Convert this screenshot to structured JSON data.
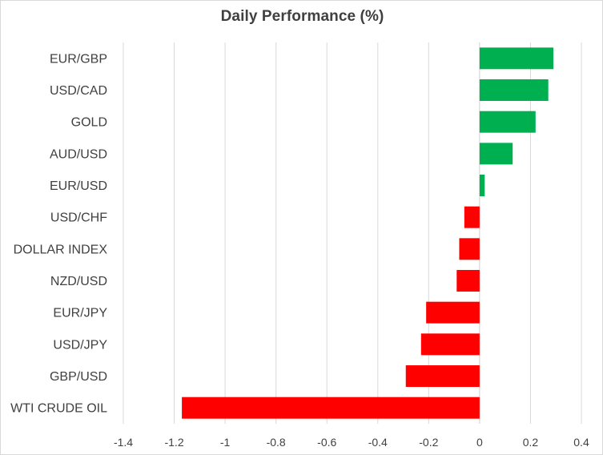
{
  "chart_data": {
    "type": "bar",
    "orientation": "horizontal",
    "title": "Daily Performance (%)",
    "xlabel": "",
    "ylabel": "",
    "categories": [
      "EUR/GBP",
      "USD/CAD",
      "GOLD",
      "AUD/USD",
      "EUR/USD",
      "USD/CHF",
      "DOLLAR INDEX",
      "NZD/USD",
      "EUR/JPY",
      "USD/JPY",
      "GBP/USD",
      "WTI CRUDE OIL"
    ],
    "values": [
      0.29,
      0.27,
      0.22,
      0.13,
      0.02,
      -0.06,
      -0.08,
      -0.09,
      -0.21,
      -0.23,
      -0.29,
      -1.17
    ],
    "xlim": [
      -1.4,
      0.4
    ],
    "x_ticks": [
      -1.4,
      -1.2,
      -1,
      -0.8,
      -0.6,
      -0.4,
      -0.2,
      0,
      0.2,
      0.4
    ],
    "x_tick_labels": [
      "-1.4",
      "-1.2",
      "-1",
      "-0.8",
      "-0.6",
      "-0.4",
      "-0.2",
      "0",
      "0.2",
      "0.4"
    ],
    "grid": true,
    "legend": false,
    "colors": {
      "positive": "#00b050",
      "negative": "#ff0000",
      "gridline": "#d9d9d9",
      "text": "#404040"
    }
  }
}
